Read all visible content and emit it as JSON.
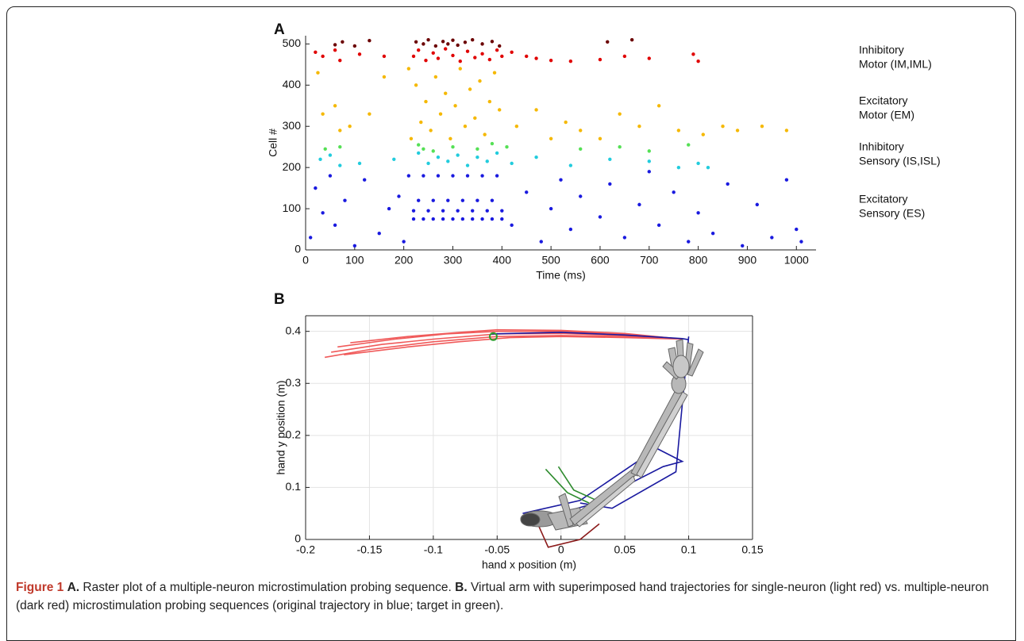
{
  "chart_data": [
    {
      "type": "scatter",
      "panel_label": "A",
      "xlabel": "Time (ms)",
      "ylabel": "Cell #",
      "xlim": [
        0,
        1040
      ],
      "ylim": [
        0,
        520
      ],
      "xticks": [
        0,
        100,
        200,
        300,
        400,
        500,
        600,
        700,
        800,
        900,
        1000
      ],
      "yticks": [
        0,
        100,
        200,
        300,
        400,
        500
      ],
      "grid": false,
      "box": false,
      "series": [
        {
          "color": "#6b0000",
          "x": [
            60,
            75,
            100,
            130,
            225,
            240,
            250,
            265,
            280,
            290,
            300,
            310,
            325,
            340,
            360,
            380,
            395,
            615,
            665
          ],
          "y": [
            498,
            505,
            495,
            508,
            505,
            500,
            510,
            495,
            506,
            500,
            509,
            497,
            504,
            510,
            500,
            506,
            495,
            505,
            510
          ]
        },
        {
          "color": "#e00000",
          "x": [
            20,
            35,
            60,
            70,
            110,
            160,
            220,
            230,
            245,
            260,
            270,
            285,
            300,
            315,
            330,
            345,
            360,
            375,
            390,
            400,
            420,
            450,
            470,
            500,
            540,
            600,
            650,
            700,
            790,
            800
          ],
          "y": [
            480,
            470,
            485,
            460,
            475,
            470,
            470,
            485,
            460,
            478,
            465,
            488,
            472,
            458,
            482,
            467,
            476,
            462,
            485,
            470,
            480,
            470,
            465,
            460,
            458,
            462,
            470,
            465,
            475,
            458
          ]
        },
        {
          "color": "#f5b800",
          "x": [
            25,
            35,
            60,
            70,
            90,
            130,
            160,
            210,
            215,
            225,
            235,
            245,
            255,
            265,
            275,
            285,
            295,
            305,
            315,
            325,
            335,
            345,
            355,
            365,
            375,
            385,
            395,
            430,
            470,
            500,
            530,
            560,
            600,
            640,
            680,
            720,
            760,
            810,
            850,
            880,
            930,
            980
          ],
          "y": [
            430,
            330,
            350,
            290,
            300,
            330,
            420,
            440,
            270,
            400,
            310,
            360,
            290,
            420,
            330,
            380,
            270,
            350,
            440,
            300,
            390,
            320,
            410,
            280,
            360,
            430,
            340,
            300,
            340,
            270,
            310,
            290,
            270,
            330,
            300,
            350,
            290,
            280,
            300,
            290,
            300,
            290
          ]
        },
        {
          "color": "#55e055",
          "x": [
            40,
            70,
            230,
            240,
            260,
            300,
            350,
            380,
            410,
            560,
            640,
            700,
            780
          ],
          "y": [
            245,
            250,
            255,
            245,
            240,
            250,
            245,
            258,
            250,
            245,
            250,
            240,
            255
          ]
        },
        {
          "color": "#22ccdd",
          "x": [
            30,
            50,
            70,
            110,
            180,
            230,
            250,
            270,
            290,
            310,
            330,
            350,
            370,
            390,
            420,
            470,
            540,
            620,
            700,
            760,
            800,
            820
          ],
          "y": [
            220,
            230,
            205,
            210,
            220,
            235,
            210,
            225,
            215,
            230,
            205,
            225,
            215,
            235,
            210,
            225,
            205,
            220,
            215,
            200,
            210,
            200
          ]
        },
        {
          "color": "#1a1adf",
          "x": [
            10,
            20,
            35,
            50,
            60,
            80,
            100,
            120,
            150,
            170,
            190,
            200,
            220,
            240,
            260,
            280,
            300,
            320,
            340,
            360,
            380,
            400,
            220,
            250,
            280,
            310,
            340,
            370,
            400,
            230,
            260,
            290,
            320,
            350,
            380,
            210,
            240,
            270,
            300,
            330,
            360,
            390,
            420,
            450,
            480,
            500,
            520,
            540,
            560,
            600,
            620,
            650,
            680,
            700,
            720,
            750,
            780,
            800,
            830,
            860,
            890,
            920,
            950,
            980,
            1000,
            1010
          ],
          "y": [
            30,
            150,
            90,
            180,
            60,
            120,
            10,
            170,
            40,
            100,
            130,
            20,
            75,
            75,
            75,
            75,
            75,
            75,
            75,
            75,
            75,
            75,
            95,
            95,
            95,
            95,
            95,
            95,
            95,
            120,
            120,
            120,
            120,
            120,
            120,
            180,
            180,
            180,
            180,
            180,
            180,
            180,
            60,
            140,
            20,
            100,
            170,
            50,
            130,
            80,
            160,
            30,
            110,
            190,
            60,
            140,
            20,
            90,
            40,
            160,
            10,
            110,
            30,
            170,
            50,
            20
          ]
        }
      ],
      "annotations": [
        {
          "lines": [
            "Inhibitory",
            "Motor (IM,IML)"
          ]
        },
        {
          "lines": [
            "Excitatory",
            "Motor (EM)"
          ]
        },
        {
          "lines": [
            "Inhibitory",
            "Sensory (IS,ISL)"
          ]
        },
        {
          "lines": [
            "Excitatory",
            "Sensory (ES)"
          ]
        }
      ]
    },
    {
      "type": "line",
      "panel_label": "B",
      "xlabel": "hand x position (m)",
      "ylabel": "hand y position (m)",
      "xlim": [
        -0.2,
        0.15
      ],
      "ylim": [
        0,
        0.43
      ],
      "xticks": [
        -0.2,
        -0.15,
        -0.1,
        -0.05,
        0,
        0.05,
        0.1,
        0.15
      ],
      "yticks": [
        0,
        0.1,
        0.2,
        0.3,
        0.4
      ],
      "grid": true,
      "box": true,
      "series": [
        {
          "color": "#f05a5a",
          "x": [
            -0.185,
            -0.15,
            -0.1,
            -0.05,
            0,
            0.05,
            0.095
          ],
          "y": [
            0.35,
            0.365,
            0.38,
            0.39,
            0.392,
            0.39,
            0.385
          ]
        },
        {
          "color": "#f05a5a",
          "x": [
            -0.18,
            -0.14,
            -0.1,
            -0.05,
            0,
            0.05,
            0.095
          ],
          "y": [
            0.36,
            0.375,
            0.385,
            0.395,
            0.396,
            0.392,
            0.385
          ]
        },
        {
          "color": "#f05a5a",
          "x": [
            -0.175,
            -0.13,
            -0.09,
            -0.05,
            0,
            0.05,
            0.095
          ],
          "y": [
            0.37,
            0.385,
            0.395,
            0.4,
            0.4,
            0.395,
            0.385
          ]
        },
        {
          "color": "#f05a5a",
          "x": [
            -0.17,
            -0.12,
            -0.08,
            -0.04,
            0,
            0.05,
            0.095
          ],
          "y": [
            0.355,
            0.37,
            0.38,
            0.388,
            0.39,
            0.388,
            0.385
          ]
        },
        {
          "color": "#f05a5a",
          "x": [
            -0.165,
            -0.12,
            -0.08,
            -0.05,
            0,
            0.05,
            0.095
          ],
          "y": [
            0.378,
            0.39,
            0.398,
            0.403,
            0.402,
            0.396,
            0.385
          ]
        },
        {
          "color": "#1a1aa0",
          "x": [
            -0.055,
            0,
            0.05,
            0.095,
            0.1
          ],
          "y": [
            0.395,
            0.398,
            0.393,
            0.386,
            0.384
          ]
        },
        {
          "color": "#1a1aa0",
          "x": [
            -0.03,
            0.015,
            0.075,
            0.095,
            0.08,
            0.02,
            -0.015
          ],
          "y": [
            0.05,
            0.075,
            0.175,
            0.15,
            0.14,
            0.065,
            0.04
          ]
        },
        {
          "color": "#1a1aa0",
          "x": [
            0.015,
            0.04,
            0.09,
            0.1
          ],
          "y": [
            0.07,
            0.06,
            0.13,
            0.39
          ]
        },
        {
          "color": "#2e8b2e",
          "x": [
            -0.012,
            0.005,
            0.022
          ],
          "y": [
            0.135,
            0.09,
            0.07
          ]
        },
        {
          "color": "#2e8b2e",
          "x": [
            -0.002,
            0.01,
            0.028
          ],
          "y": [
            0.14,
            0.095,
            0.075
          ]
        },
        {
          "color": "#8b1a1a",
          "x": [
            -0.02,
            -0.01,
            0.015,
            0.03
          ],
          "y": [
            0.04,
            -0.015,
            0.0,
            0.03
          ]
        }
      ],
      "target": {
        "color": "#2e9e2e",
        "x": -0.053,
        "y": 0.39
      }
    }
  ],
  "caption": {
    "label": "Figure 1",
    "parts": [
      {
        "bold": "A.",
        "text": "Raster plot of a multiple-neuron microstimulation probing sequence."
      },
      {
        "bold": "B.",
        "text": "Virtual arm with superimposed hand trajectories for single-neuron (light red) vs. multiple-neuron (dark red) microstimulation probing sequences (original trajectory in blue; target in green)."
      }
    ]
  }
}
